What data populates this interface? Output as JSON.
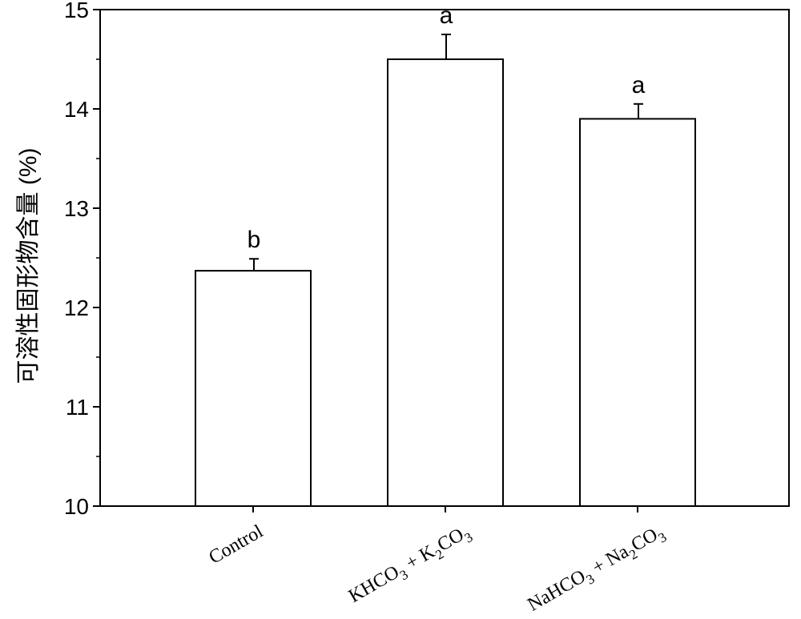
{
  "chart_data": {
    "type": "bar",
    "title": "",
    "xlabel": "",
    "ylabel": "可溶性固形物含量 (%)",
    "ylim": [
      10,
      15
    ],
    "yticks": [
      10,
      11,
      12,
      13,
      14,
      15
    ],
    "ytick_labels": [
      "10",
      "11",
      "12",
      "13",
      "14",
      "15"
    ],
    "grid": false,
    "categories": [
      {
        "label": "Control",
        "sub": ""
      },
      {
        "label": "KHCO₃ + K₂CO₃",
        "parts": [
          "KHCO",
          "3",
          " + K",
          "2",
          "CO",
          "3"
        ]
      },
      {
        "label": "NaHCO₃ + Na₂CO₃",
        "parts": [
          "NaHCO",
          "3",
          " + Na",
          "2",
          "CO",
          "3"
        ]
      }
    ],
    "values": [
      12.37,
      14.5,
      13.9
    ],
    "errors": [
      0.12,
      0.25,
      0.15
    ],
    "significance": [
      "b",
      "a",
      "a"
    ],
    "bar_fill": "#ffffff",
    "bar_stroke": "#000000"
  }
}
